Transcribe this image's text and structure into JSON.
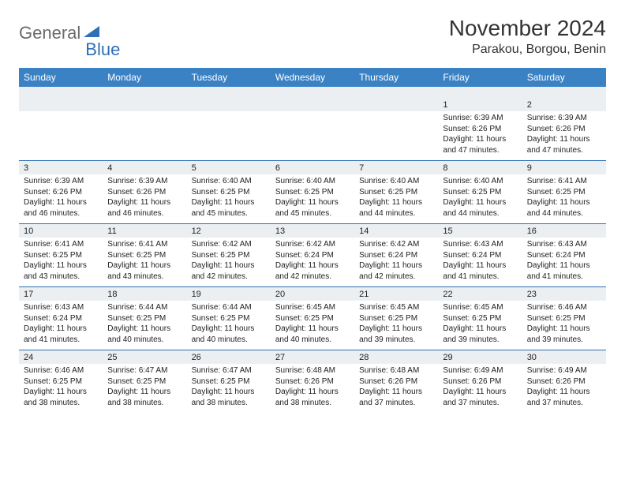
{
  "logo": {
    "part1": "General",
    "part2": "Blue"
  },
  "title": "November 2024",
  "location": "Parakou, Borgou, Benin",
  "colors": {
    "header_bg": "#3b82c4",
    "header_text": "#ffffff",
    "daynum_bg": "#eceff1",
    "divider": "#2e6fb5",
    "body_text": "#222222",
    "logo_gray": "#6b6b6b",
    "logo_blue": "#2e6fb5",
    "page_bg": "#ffffff"
  },
  "typography": {
    "title_fontsize": 28,
    "location_fontsize": 16,
    "dayhead_fontsize": 12,
    "daynum_fontsize": 11,
    "body_fontsize": 10,
    "font_family": "Arial"
  },
  "day_headers": [
    "Sunday",
    "Monday",
    "Tuesday",
    "Wednesday",
    "Thursday",
    "Friday",
    "Saturday"
  ],
  "weeks": [
    {
      "nums": [
        "",
        "",
        "",
        "",
        "",
        "1",
        "2"
      ],
      "cells": [
        [],
        [],
        [],
        [],
        [],
        [
          "Sunrise: 6:39 AM",
          "Sunset: 6:26 PM",
          "Daylight: 11 hours and 47 minutes."
        ],
        [
          "Sunrise: 6:39 AM",
          "Sunset: 6:26 PM",
          "Daylight: 11 hours and 47 minutes."
        ]
      ]
    },
    {
      "nums": [
        "3",
        "4",
        "5",
        "6",
        "7",
        "8",
        "9"
      ],
      "cells": [
        [
          "Sunrise: 6:39 AM",
          "Sunset: 6:26 PM",
          "Daylight: 11 hours and 46 minutes."
        ],
        [
          "Sunrise: 6:39 AM",
          "Sunset: 6:26 PM",
          "Daylight: 11 hours and 46 minutes."
        ],
        [
          "Sunrise: 6:40 AM",
          "Sunset: 6:25 PM",
          "Daylight: 11 hours and 45 minutes."
        ],
        [
          "Sunrise: 6:40 AM",
          "Sunset: 6:25 PM",
          "Daylight: 11 hours and 45 minutes."
        ],
        [
          "Sunrise: 6:40 AM",
          "Sunset: 6:25 PM",
          "Daylight: 11 hours and 44 minutes."
        ],
        [
          "Sunrise: 6:40 AM",
          "Sunset: 6:25 PM",
          "Daylight: 11 hours and 44 minutes."
        ],
        [
          "Sunrise: 6:41 AM",
          "Sunset: 6:25 PM",
          "Daylight: 11 hours and 44 minutes."
        ]
      ]
    },
    {
      "nums": [
        "10",
        "11",
        "12",
        "13",
        "14",
        "15",
        "16"
      ],
      "cells": [
        [
          "Sunrise: 6:41 AM",
          "Sunset: 6:25 PM",
          "Daylight: 11 hours and 43 minutes."
        ],
        [
          "Sunrise: 6:41 AM",
          "Sunset: 6:25 PM",
          "Daylight: 11 hours and 43 minutes."
        ],
        [
          "Sunrise: 6:42 AM",
          "Sunset: 6:25 PM",
          "Daylight: 11 hours and 42 minutes."
        ],
        [
          "Sunrise: 6:42 AM",
          "Sunset: 6:24 PM",
          "Daylight: 11 hours and 42 minutes."
        ],
        [
          "Sunrise: 6:42 AM",
          "Sunset: 6:24 PM",
          "Daylight: 11 hours and 42 minutes."
        ],
        [
          "Sunrise: 6:43 AM",
          "Sunset: 6:24 PM",
          "Daylight: 11 hours and 41 minutes."
        ],
        [
          "Sunrise: 6:43 AM",
          "Sunset: 6:24 PM",
          "Daylight: 11 hours and 41 minutes."
        ]
      ]
    },
    {
      "nums": [
        "17",
        "18",
        "19",
        "20",
        "21",
        "22",
        "23"
      ],
      "cells": [
        [
          "Sunrise: 6:43 AM",
          "Sunset: 6:24 PM",
          "Daylight: 11 hours and 41 minutes."
        ],
        [
          "Sunrise: 6:44 AM",
          "Sunset: 6:25 PM",
          "Daylight: 11 hours and 40 minutes."
        ],
        [
          "Sunrise: 6:44 AM",
          "Sunset: 6:25 PM",
          "Daylight: 11 hours and 40 minutes."
        ],
        [
          "Sunrise: 6:45 AM",
          "Sunset: 6:25 PM",
          "Daylight: 11 hours and 40 minutes."
        ],
        [
          "Sunrise: 6:45 AM",
          "Sunset: 6:25 PM",
          "Daylight: 11 hours and 39 minutes."
        ],
        [
          "Sunrise: 6:45 AM",
          "Sunset: 6:25 PM",
          "Daylight: 11 hours and 39 minutes."
        ],
        [
          "Sunrise: 6:46 AM",
          "Sunset: 6:25 PM",
          "Daylight: 11 hours and 39 minutes."
        ]
      ]
    },
    {
      "nums": [
        "24",
        "25",
        "26",
        "27",
        "28",
        "29",
        "30"
      ],
      "cells": [
        [
          "Sunrise: 6:46 AM",
          "Sunset: 6:25 PM",
          "Daylight: 11 hours and 38 minutes."
        ],
        [
          "Sunrise: 6:47 AM",
          "Sunset: 6:25 PM",
          "Daylight: 11 hours and 38 minutes."
        ],
        [
          "Sunrise: 6:47 AM",
          "Sunset: 6:25 PM",
          "Daylight: 11 hours and 38 minutes."
        ],
        [
          "Sunrise: 6:48 AM",
          "Sunset: 6:26 PM",
          "Daylight: 11 hours and 38 minutes."
        ],
        [
          "Sunrise: 6:48 AM",
          "Sunset: 6:26 PM",
          "Daylight: 11 hours and 37 minutes."
        ],
        [
          "Sunrise: 6:49 AM",
          "Sunset: 6:26 PM",
          "Daylight: 11 hours and 37 minutes."
        ],
        [
          "Sunrise: 6:49 AM",
          "Sunset: 6:26 PM",
          "Daylight: 11 hours and 37 minutes."
        ]
      ]
    }
  ]
}
